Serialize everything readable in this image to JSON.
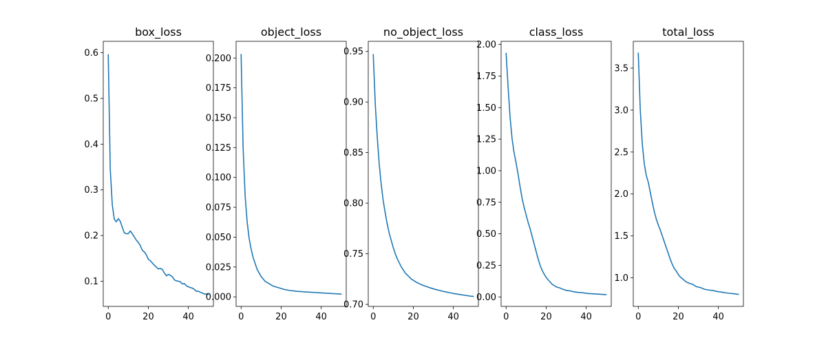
{
  "line_color": "#1f77b4",
  "axis_color": "#000000",
  "chart_data": [
    {
      "type": "line",
      "title": "box_loss",
      "xlabel": "",
      "ylabel": "",
      "xlim": [
        -2.5,
        52.5
      ],
      "ylim": [
        0.045,
        0.625
      ],
      "xticks": [
        0,
        20,
        40
      ],
      "yticks": [
        0.1,
        0.2,
        0.3,
        0.4,
        0.5,
        0.6
      ],
      "ytick_labels": [
        "0.1",
        "0.2",
        "0.3",
        "0.4",
        "0.5",
        "0.6"
      ],
      "grid": false,
      "series": [
        {
          "x": [
            0,
            1,
            2,
            3,
            4,
            5,
            6,
            7,
            8,
            9,
            10,
            11,
            12,
            13,
            14,
            15,
            16,
            17,
            18,
            19,
            20,
            21,
            22,
            23,
            24,
            25,
            26,
            27,
            28,
            29,
            30,
            31,
            32,
            33,
            34,
            35,
            36,
            37,
            38,
            39,
            40,
            41,
            42,
            43,
            44,
            45,
            46,
            47,
            48,
            49,
            50
          ],
          "values": [
            0.596,
            0.345,
            0.268,
            0.236,
            0.23,
            0.237,
            0.231,
            0.218,
            0.206,
            0.204,
            0.204,
            0.21,
            0.204,
            0.197,
            0.19,
            0.185,
            0.178,
            0.168,
            0.164,
            0.158,
            0.148,
            0.145,
            0.14,
            0.135,
            0.131,
            0.127,
            0.128,
            0.126,
            0.118,
            0.112,
            0.115,
            0.113,
            0.11,
            0.103,
            0.101,
            0.1,
            0.099,
            0.094,
            0.095,
            0.09,
            0.088,
            0.086,
            0.085,
            0.082,
            0.078,
            0.078,
            0.076,
            0.074,
            0.072,
            0.072,
            0.071
          ]
        }
      ]
    },
    {
      "type": "line",
      "title": "object_loss",
      "xlabel": "",
      "ylabel": "",
      "xlim": [
        -2.5,
        52.5
      ],
      "ylim": [
        -0.008,
        0.214
      ],
      "xticks": [
        0,
        20,
        40
      ],
      "yticks": [
        0.0,
        0.025,
        0.05,
        0.075,
        0.1,
        0.125,
        0.15,
        0.175,
        0.2
      ],
      "ytick_labels": [
        "0.000",
        "0.025",
        "0.050",
        "0.075",
        "0.100",
        "0.125",
        "0.150",
        "0.175",
        "0.200"
      ],
      "grid": false,
      "series": [
        {
          "x": [
            0,
            1,
            2,
            3,
            4,
            5,
            6,
            7,
            8,
            9,
            10,
            11,
            12,
            13,
            14,
            15,
            16,
            17,
            18,
            19,
            20,
            21,
            22,
            23,
            24,
            25,
            26,
            27,
            28,
            29,
            30,
            31,
            32,
            33,
            34,
            35,
            36,
            37,
            38,
            39,
            40,
            41,
            42,
            43,
            44,
            45,
            46,
            47,
            48,
            49,
            50
          ],
          "values": [
            0.203,
            0.125,
            0.085,
            0.063,
            0.049,
            0.04,
            0.033,
            0.028,
            0.023,
            0.02,
            0.017,
            0.015,
            0.013,
            0.012,
            0.011,
            0.01,
            0.009,
            0.0085,
            0.008,
            0.0075,
            0.007,
            0.0065,
            0.006,
            0.0057,
            0.0054,
            0.0052,
            0.005,
            0.0048,
            0.0046,
            0.0045,
            0.0044,
            0.0042,
            0.0041,
            0.004,
            0.0039,
            0.0038,
            0.0037,
            0.0036,
            0.0035,
            0.0034,
            0.0033,
            0.0032,
            0.0031,
            0.003,
            0.0029,
            0.0028,
            0.0027,
            0.0026,
            0.0025,
            0.0024,
            0.0023
          ]
        }
      ]
    },
    {
      "type": "line",
      "title": "no_object_loss",
      "xlabel": "",
      "ylabel": "",
      "xlim": [
        -2.5,
        52.5
      ],
      "ylim": [
        0.698,
        0.96
      ],
      "xticks": [
        0,
        20,
        40
      ],
      "yticks": [
        0.7,
        0.75,
        0.8,
        0.85,
        0.9,
        0.95
      ],
      "ytick_labels": [
        "0.70",
        "0.75",
        "0.80",
        "0.85",
        "0.90",
        "0.95"
      ],
      "grid": false,
      "series": [
        {
          "x": [
            0,
            1,
            2,
            3,
            4,
            5,
            6,
            7,
            8,
            9,
            10,
            11,
            12,
            13,
            14,
            15,
            16,
            17,
            18,
            19,
            20,
            21,
            22,
            23,
            24,
            25,
            26,
            27,
            28,
            29,
            30,
            31,
            32,
            33,
            34,
            35,
            36,
            37,
            38,
            39,
            40,
            41,
            42,
            43,
            44,
            45,
            46,
            47,
            48,
            49,
            50
          ],
          "values": [
            0.947,
            0.898,
            0.865,
            0.838,
            0.818,
            0.802,
            0.79,
            0.779,
            0.77,
            0.763,
            0.756,
            0.75,
            0.745,
            0.741,
            0.737,
            0.734,
            0.731,
            0.729,
            0.727,
            0.725,
            0.7238,
            0.7225,
            0.7214,
            0.7204,
            0.7195,
            0.7187,
            0.718,
            0.7173,
            0.7166,
            0.716,
            0.7154,
            0.7148,
            0.7143,
            0.7138,
            0.7133,
            0.7128,
            0.7124,
            0.712,
            0.7116,
            0.7112,
            0.7108,
            0.7104,
            0.7101,
            0.7098,
            0.7095,
            0.7092,
            0.7089,
            0.7086,
            0.7083,
            0.708,
            0.7078
          ]
        }
      ]
    },
    {
      "type": "line",
      "title": "class_loss",
      "xlabel": "",
      "ylabel": "",
      "xlim": [
        -2.5,
        52.5
      ],
      "ylim": [
        -0.075,
        2.025
      ],
      "xticks": [
        0,
        20,
        40
      ],
      "yticks": [
        0.0,
        0.25,
        0.5,
        0.75,
        1.0,
        1.25,
        1.5,
        1.75,
        2.0
      ],
      "ytick_labels": [
        "0.00",
        "0.25",
        "0.50",
        "0.75",
        "1.00",
        "1.25",
        "1.50",
        "1.75",
        "2.00"
      ],
      "grid": false,
      "series": [
        {
          "x": [
            0,
            1,
            2,
            3,
            4,
            5,
            6,
            7,
            8,
            9,
            10,
            11,
            12,
            13,
            14,
            15,
            16,
            17,
            18,
            19,
            20,
            21,
            22,
            23,
            24,
            25,
            26,
            27,
            28,
            29,
            30,
            31,
            32,
            33,
            34,
            35,
            36,
            37,
            38,
            39,
            40,
            41,
            42,
            43,
            44,
            45,
            46,
            47,
            48,
            49,
            50
          ],
          "values": [
            1.93,
            1.66,
            1.42,
            1.25,
            1.14,
            1.06,
            0.97,
            0.87,
            0.78,
            0.71,
            0.65,
            0.59,
            0.54,
            0.48,
            0.42,
            0.36,
            0.3,
            0.25,
            0.21,
            0.18,
            0.155,
            0.135,
            0.118,
            0.1,
            0.09,
            0.08,
            0.075,
            0.07,
            0.063,
            0.057,
            0.052,
            0.05,
            0.047,
            0.044,
            0.04,
            0.038,
            0.036,
            0.035,
            0.033,
            0.031,
            0.029,
            0.027,
            0.026,
            0.025,
            0.024,
            0.023,
            0.022,
            0.021,
            0.02,
            0.019,
            0.018
          ]
        }
      ]
    },
    {
      "type": "line",
      "title": "total_loss",
      "xlabel": "",
      "ylabel": "",
      "xlim": [
        -2.5,
        52.5
      ],
      "ylim": [
        0.66,
        3.82
      ],
      "xticks": [
        0,
        20,
        40
      ],
      "yticks": [
        1.0,
        1.5,
        2.0,
        2.5,
        3.0,
        3.5
      ],
      "ytick_labels": [
        "1.0",
        "1.5",
        "2.0",
        "2.5",
        "3.0",
        "3.5"
      ],
      "grid": false,
      "series": [
        {
          "x": [
            0,
            1,
            2,
            3,
            4,
            5,
            6,
            7,
            8,
            9,
            10,
            11,
            12,
            13,
            14,
            15,
            16,
            17,
            18,
            19,
            20,
            21,
            22,
            23,
            24,
            25,
            26,
            27,
            28,
            29,
            30,
            31,
            32,
            33,
            34,
            35,
            36,
            37,
            38,
            39,
            40,
            41,
            42,
            43,
            44,
            45,
            46,
            47,
            48,
            49,
            50
          ],
          "values": [
            3.68,
            3.0,
            2.6,
            2.36,
            2.22,
            2.14,
            2.02,
            1.9,
            1.79,
            1.7,
            1.63,
            1.57,
            1.5,
            1.43,
            1.36,
            1.29,
            1.22,
            1.16,
            1.11,
            1.08,
            1.04,
            1.01,
            0.99,
            0.97,
            0.95,
            0.94,
            0.93,
            0.925,
            0.91,
            0.895,
            0.89,
            0.885,
            0.875,
            0.865,
            0.86,
            0.855,
            0.853,
            0.85,
            0.845,
            0.84,
            0.835,
            0.833,
            0.828,
            0.825,
            0.82,
            0.818,
            0.815,
            0.812,
            0.81,
            0.806,
            0.803
          ]
        }
      ]
    }
  ]
}
